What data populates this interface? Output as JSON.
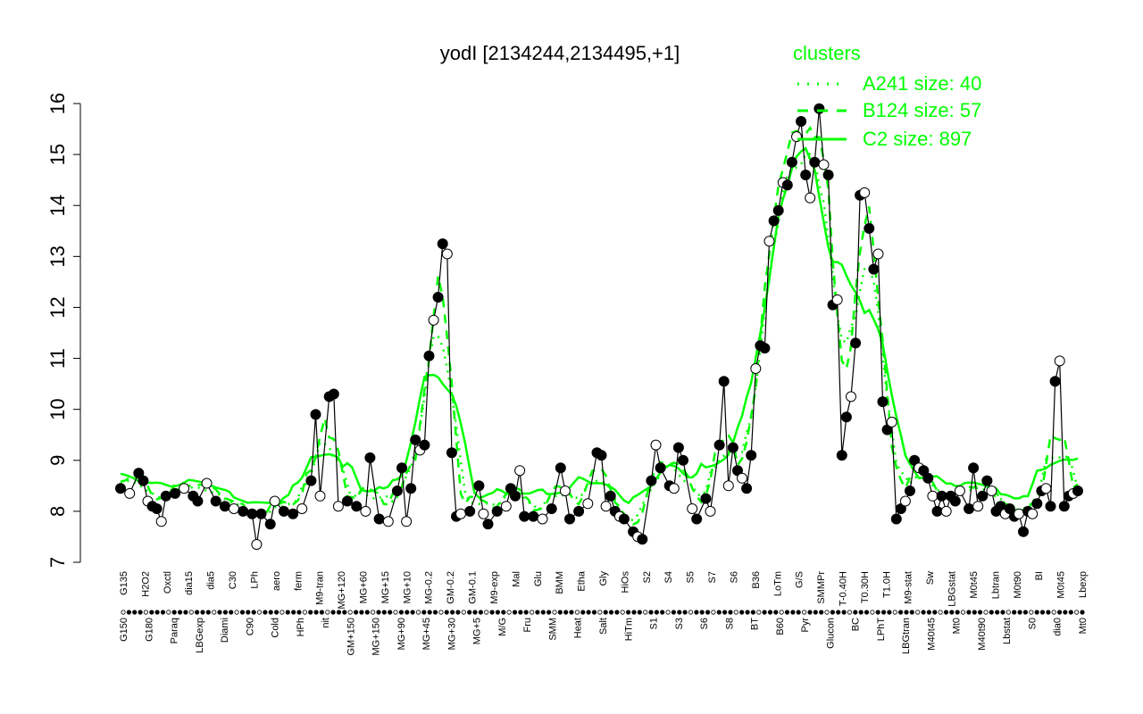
{
  "chart_data": {
    "type": "line",
    "title": "yodI [2134244,2134495,+1]",
    "ylim": [
      7,
      16
    ],
    "yticks": [
      7,
      8,
      9,
      10,
      11,
      12,
      13,
      14,
      15,
      16
    ],
    "grid": false,
    "legend_placement": "top-right",
    "legend": {
      "title": "clusters",
      "entries": [
        {
          "label": "A241 size: 40",
          "style": "dotted"
        },
        {
          "label": "B124 size: 57",
          "style": "dashed"
        },
        {
          "label": "C2 size: 897",
          "style": "solid"
        }
      ]
    },
    "colors": {
      "series": "#00ff00",
      "points_dark": "#000000",
      "points_light": "#ffffff"
    },
    "x_labels_top": [
      "G135",
      "H2O2",
      "Oxctl",
      "dia15",
      "dia5",
      "C30",
      "LPh",
      "aero",
      "ferm",
      "M9-tran",
      "MG+120",
      "MG+60",
      "MG+15",
      "MG+10",
      "MG-0.2",
      "GM-0.2",
      "GM-0.1",
      "M9-exp",
      "Mal",
      "Glu",
      "BMM",
      "Etha",
      "Gly",
      "HiOs",
      "S2",
      "S4",
      "S5",
      "S7",
      "S6",
      "B36",
      "LoTm",
      "G/S",
      "SMMPr",
      "T-0.40H",
      "T0.30H",
      "T1.0H",
      "M9-stat",
      "Sw",
      "LBGstat",
      "M0t45",
      "Lbtran",
      "M0t90",
      "BI",
      "M0t45",
      "Lbexp"
    ],
    "x_labels_bottom": [
      "G150",
      "G180",
      "Paraq",
      "LBGexp",
      "Diami",
      "C90",
      "Cold",
      "HPh",
      "nit",
      "GM+150",
      "MG+150",
      "MG+90",
      "MG+45",
      "MG+30",
      "MG+5",
      "M/G",
      "Fru",
      "SMM",
      "Heat",
      "Salt",
      "HiTm",
      "S1",
      "S3",
      "S6",
      "S8",
      "BT",
      "B60",
      "Pyr",
      "Glucon",
      "BC",
      "LPhT",
      "LBGtran",
      "M40t45",
      "Mt0",
      "M40t90",
      "Lbstat",
      "S0",
      "dia0",
      "Mt0"
    ],
    "x": [
      1,
      2,
      3,
      4,
      5,
      6,
      7,
      8,
      9,
      10,
      11,
      12,
      13,
      14,
      15,
      16,
      17,
      18,
      19,
      20,
      21,
      22,
      23,
      24,
      25,
      26,
      27,
      28,
      29,
      30,
      31,
      32,
      33,
      34,
      35,
      36,
      37,
      38,
      39,
      40,
      41,
      42,
      43,
      44,
      45,
      46,
      47,
      48,
      49,
      50,
      51,
      52,
      53,
      54,
      55,
      56,
      57,
      58,
      59,
      60,
      61,
      62,
      63,
      64,
      65,
      66,
      67,
      68,
      69,
      70,
      71,
      72,
      73,
      74,
      75,
      76,
      77,
      78,
      79,
      80,
      81,
      82,
      83,
      84,
      85,
      86,
      87,
      88,
      89,
      90,
      91,
      92,
      93,
      94,
      95,
      96,
      97,
      98,
      99,
      100,
      101,
      102,
      103,
      104,
      105,
      106,
      107,
      108,
      109,
      110,
      111,
      112,
      113,
      114,
      115,
      116,
      117,
      118,
      119,
      120,
      121,
      122,
      123,
      124,
      125,
      126,
      127,
      128,
      129,
      130,
      131,
      132,
      133,
      134,
      135,
      136,
      137,
      138,
      139,
      140,
      141,
      142,
      143,
      144,
      145,
      146,
      147,
      148,
      149,
      150,
      151,
      152,
      153,
      154,
      155,
      156,
      157,
      158,
      159,
      160,
      161,
      162,
      163,
      164,
      165,
      166,
      167,
      168,
      169,
      170,
      171,
      172,
      173,
      174,
      175,
      176,
      177,
      178,
      179,
      180,
      181,
      182,
      183,
      184,
      185,
      186,
      187,
      188,
      189,
      190,
      191,
      192,
      193,
      194,
      195,
      196,
      197,
      198,
      199,
      200,
      201,
      202,
      203,
      204,
      205,
      206,
      207,
      208,
      209,
      210,
      211,
      212,
      213,
      214,
      215,
      216,
      217,
      218,
      219,
      220,
      221,
      222,
      223,
      224,
      225,
      226,
      227,
      228,
      229,
      230,
      231,
      232,
      233,
      234,
      235,
      236,
      237,
      238,
      239,
      240,
      241,
      242,
      243,
      244,
      245,
      246,
      247,
      248,
      249,
      250,
      251,
      252,
      253,
      254,
      255,
      256,
      257,
      258,
      259,
      260,
      261,
      262,
      263,
      264,
      265,
      266,
      267,
      268,
      269,
      270,
      271,
      272,
      273,
      274,
      275,
      276,
      277,
      278,
      279,
      280,
      281,
      282,
      283,
      284,
      285,
      286,
      287,
      288,
      289,
      290,
      291,
      292,
      293,
      294,
      295,
      296,
      297,
      298,
      299,
      300,
      301,
      302,
      303,
      304,
      305,
      306,
      307,
      308,
      309,
      310,
      311,
      312,
      313,
      314,
      315,
      316,
      317,
      318,
      319,
      320,
      321,
      322,
      323,
      324,
      325,
      326,
      327,
      328,
      329,
      330,
      331,
      332,
      333,
      334,
      335,
      336,
      337,
      338,
      339,
      340,
      341,
      342,
      343,
      344,
      345,
      346,
      347,
      348,
      349,
      350,
      351,
      352,
      353,
      354,
      355,
      356,
      357,
      358,
      359,
      360,
      361,
      362,
      363,
      364,
      365,
      366,
      367,
      368,
      369,
      370,
      371,
      372,
      373,
      374,
      375,
      376,
      377,
      378,
      379,
      380,
      381,
      382,
      383,
      384,
      385,
      386,
      387,
      388,
      389,
      390,
      391,
      392,
      393,
      394,
      395,
      396,
      397,
      398,
      399,
      400,
      401,
      402,
      403,
      404,
      405,
      406,
      407,
      408,
      409,
      410,
      411,
      412,
      413,
      414,
      415,
      416,
      417,
      418,
      419,
      420,
      421,
      422,
      423,
      424,
      425,
      426,
      427,
      428,
      429,
      430,
      431,
      432,
      433,
      434,
      435,
      436,
      437,
      438,
      439,
      440,
      441,
      442,
      443,
      444,
      445,
      446,
      447,
      448,
      449,
      450,
      451,
      452,
      453,
      454,
      455,
      456,
      457,
      458,
      459,
      460,
      461,
      462,
      463,
      464,
      465,
      466,
      467,
      468,
      469,
      470,
      471,
      472,
      473,
      474,
      475,
      476,
      477,
      478,
      479,
      480,
      481,
      482,
      483,
      484,
      485,
      486,
      487,
      488,
      489,
      490,
      491,
      492,
      493,
      494,
      495,
      496,
      497,
      498,
      499,
      500,
      501,
      502,
      503,
      504,
      505,
      506,
      507,
      508,
      509,
      510,
      511,
      512,
      513,
      514,
      515,
      516,
      517,
      518,
      519,
      520,
      521,
      522,
      523,
      524,
      525,
      526,
      527,
      528,
      529,
      530,
      531,
      532,
      533,
      534,
      535,
      536,
      537,
      538,
      539,
      540,
      541,
      542,
      543,
      544,
      545,
      546,
      547,
      548,
      549,
      550,
      551,
      552,
      553,
      554,
      555,
      556,
      557,
      558,
      559,
      560,
      561,
      562,
      563,
      564,
      565,
      566,
      567,
      568,
      569,
      570,
      571,
      572,
      573,
      574,
      575,
      576,
      577,
      578,
      579,
      580,
      581,
      582,
      583,
      584,
      585,
      586,
      587,
      588,
      589,
      590,
      591,
      592,
      593,
      594,
      595,
      596,
      597,
      598,
      599,
      600,
      601,
      602,
      603,
      604,
      605,
      606,
      607,
      608,
      609,
      610,
      611,
      612,
      613,
      614,
      615,
      616,
      617,
      618,
      619,
      620,
      621,
      622,
      623,
      624,
      625,
      626,
      627,
      628,
      629,
      630,
      631,
      632,
      633,
      634,
      635,
      636,
      637,
      638,
      639,
      640,
      641,
      642,
      643,
      644,
      645,
      646,
      647,
      648,
      649,
      650,
      651,
      652,
      653,
      654,
      655,
      656,
      657,
      658,
      659,
      660,
      661,
      662,
      663,
      664,
      665,
      666,
      667,
      668,
      669,
      670,
      671,
      672,
      673,
      674,
      675,
      676,
      677,
      678,
      679,
      680,
      681,
      682,
      683,
      684,
      685,
      686,
      687,
      688,
      689,
      690,
      691,
      692,
      693,
      694,
      695,
      696,
      697,
      698,
      699,
      700,
      701,
      702,
      703,
      704,
      705,
      706,
      707,
      708,
      709,
      710,
      711,
      712,
      713,
      714,
      715,
      716,
      717,
      718,
      719,
      720,
      721,
      722,
      723,
      724,
      725,
      726,
      727,
      728,
      729,
      730,
      731,
      732,
      733,
      734,
      735,
      736,
      737,
      738,
      739,
      740,
      741,
      742,
      743,
      744,
      745,
      746,
      747,
      748,
      749,
      750,
      751,
      752,
      753,
      754,
      755,
      756,
      757,
      758,
      759,
      760,
      761,
      762,
      763,
      764,
      765,
      766,
      767,
      768,
      769,
      770,
      771,
      772,
      773,
      774,
      775,
      776,
      777,
      778,
      779,
      780,
      781,
      782,
      783,
      784,
      785,
      786,
      787,
      788,
      789,
      790,
      791,
      792,
      793,
      794,
      795,
      796,
      797,
      798,
      799,
      800
    ],
    "profile": [
      [
        0,
        8.45
      ],
      [
        4,
        8.35
      ],
      [
        8,
        8.75
      ],
      [
        10,
        8.6
      ],
      [
        12,
        8.2
      ],
      [
        14,
        8.1
      ],
      [
        16,
        8.05
      ],
      [
        18,
        7.8
      ],
      [
        20,
        8.3
      ],
      [
        24,
        8.35
      ],
      [
        28,
        8.45
      ],
      [
        32,
        8.3
      ],
      [
        34,
        8.2
      ],
      [
        38,
        8.55
      ],
      [
        42,
        8.2
      ],
      [
        46,
        8.1
      ],
      [
        50,
        8.05
      ],
      [
        54,
        8.0
      ],
      [
        58,
        7.95
      ],
      [
        60,
        7.35
      ],
      [
        62,
        7.95
      ],
      [
        66,
        7.75
      ],
      [
        68,
        8.2
      ],
      [
        72,
        8.0
      ],
      [
        76,
        7.95
      ],
      [
        80,
        8.05
      ],
      [
        84,
        8.6
      ],
      [
        86,
        9.9
      ],
      [
        88,
        8.3
      ],
      [
        92,
        10.25
      ],
      [
        94,
        10.3
      ],
      [
        96,
        8.1
      ],
      [
        100,
        8.2
      ],
      [
        104,
        8.1
      ],
      [
        108,
        8.0
      ],
      [
        110,
        9.05
      ],
      [
        114,
        7.85
      ],
      [
        118,
        7.8
      ],
      [
        122,
        8.4
      ],
      [
        124,
        8.85
      ],
      [
        126,
        7.8
      ],
      [
        128,
        8.45
      ],
      [
        130,
        9.4
      ],
      [
        132,
        9.2
      ],
      [
        134,
        9.3
      ],
      [
        136,
        11.05
      ],
      [
        138,
        11.75
      ],
      [
        140,
        12.2
      ],
      [
        142,
        13.25
      ],
      [
        144,
        13.05
      ],
      [
        146,
        9.15
      ],
      [
        148,
        7.9
      ],
      [
        150,
        7.95
      ],
      [
        154,
        8.0
      ],
      [
        158,
        8.5
      ],
      [
        160,
        7.95
      ],
      [
        162,
        7.75
      ],
      [
        166,
        8.0
      ],
      [
        170,
        8.1
      ],
      [
        172,
        8.45
      ],
      [
        174,
        8.3
      ],
      [
        176,
        8.8
      ],
      [
        178,
        7.9
      ],
      [
        182,
        7.9
      ],
      [
        186,
        7.85
      ],
      [
        190,
        8.05
      ],
      [
        194,
        8.85
      ],
      [
        196,
        8.4
      ],
      [
        198,
        7.85
      ],
      [
        202,
        8.0
      ],
      [
        206,
        8.15
      ],
      [
        210,
        9.15
      ],
      [
        212,
        9.1
      ],
      [
        214,
        8.1
      ],
      [
        216,
        8.3
      ],
      [
        218,
        8.0
      ],
      [
        220,
        7.9
      ],
      [
        222,
        7.85
      ],
      [
        226,
        7.6
      ],
      [
        228,
        7.5
      ],
      [
        230,
        7.45
      ],
      [
        234,
        8.6
      ],
      [
        236,
        9.3
      ],
      [
        238,
        8.85
      ],
      [
        242,
        8.5
      ],
      [
        244,
        8.45
      ],
      [
        246,
        9.25
      ],
      [
        248,
        9.0
      ],
      [
        252,
        8.05
      ],
      [
        254,
        7.85
      ],
      [
        258,
        8.25
      ],
      [
        260,
        8.0
      ],
      [
        264,
        9.3
      ],
      [
        266,
        10.55
      ],
      [
        268,
        8.5
      ],
      [
        270,
        9.25
      ],
      [
        272,
        8.8
      ],
      [
        274,
        8.65
      ],
      [
        276,
        8.45
      ],
      [
        278,
        9.1
      ],
      [
        280,
        10.8
      ],
      [
        282,
        11.25
      ],
      [
        284,
        11.2
      ],
      [
        286,
        13.3
      ],
      [
        288,
        13.7
      ],
      [
        290,
        13.9
      ],
      [
        292,
        14.45
      ],
      [
        294,
        14.4
      ],
      [
        296,
        14.85
      ],
      [
        298,
        15.35
      ],
      [
        300,
        15.65
      ],
      [
        302,
        14.6
      ],
      [
        304,
        14.15
      ],
      [
        306,
        14.85
      ],
      [
        308,
        15.9
      ],
      [
        310,
        14.8
      ],
      [
        312,
        14.6
      ],
      [
        314,
        12.05
      ],
      [
        316,
        12.15
      ],
      [
        318,
        9.1
      ],
      [
        320,
        9.85
      ],
      [
        322,
        10.25
      ],
      [
        324,
        11.3
      ],
      [
        326,
        14.2
      ],
      [
        328,
        14.25
      ],
      [
        330,
        13.55
      ],
      [
        332,
        12.75
      ],
      [
        334,
        13.05
      ],
      [
        336,
        10.15
      ],
      [
        338,
        9.6
      ],
      [
        340,
        9.75
      ],
      [
        342,
        7.85
      ],
      [
        344,
        8.05
      ],
      [
        346,
        8.2
      ],
      [
        348,
        8.4
      ],
      [
        350,
        9.0
      ],
      [
        352,
        8.85
      ],
      [
        354,
        8.8
      ],
      [
        356,
        8.65
      ],
      [
        358,
        8.3
      ],
      [
        360,
        8.0
      ],
      [
        362,
        8.3
      ],
      [
        364,
        8.0
      ],
      [
        366,
        8.3
      ],
      [
        368,
        8.2
      ],
      [
        370,
        8.4
      ],
      [
        374,
        8.05
      ],
      [
        376,
        8.85
      ],
      [
        378,
        8.1
      ],
      [
        380,
        8.3
      ],
      [
        382,
        8.6
      ],
      [
        384,
        8.4
      ],
      [
        386,
        8.0
      ],
      [
        388,
        8.1
      ],
      [
        390,
        7.95
      ],
      [
        392,
        8.05
      ],
      [
        394,
        7.9
      ],
      [
        396,
        7.95
      ],
      [
        398,
        7.6
      ],
      [
        400,
        8.0
      ],
      [
        402,
        7.95
      ],
      [
        404,
        8.15
      ],
      [
        406,
        8.4
      ],
      [
        408,
        8.45
      ],
      [
        410,
        8.1
      ],
      [
        412,
        10.55
      ],
      [
        414,
        10.95
      ],
      [
        416,
        8.1
      ],
      [
        418,
        8.3
      ],
      [
        420,
        8.35
      ],
      [
        422,
        8.4
      ]
    ]
  }
}
